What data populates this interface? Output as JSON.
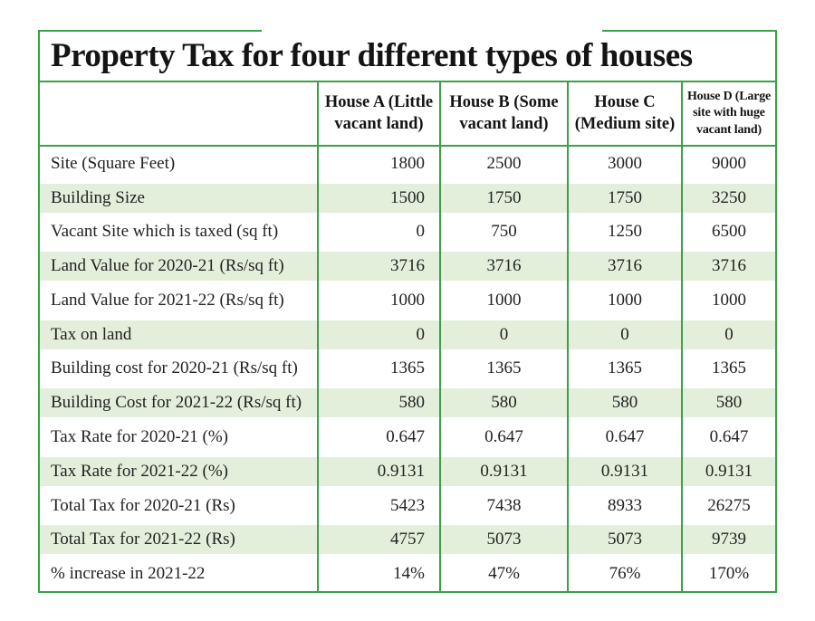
{
  "chart_data": {
    "type": "table",
    "title": "Property Tax for four different types of houses",
    "columns": [
      "House A (Little vacant land)",
      "House B (Some vacant land)",
      "House C (Medium site)",
      "House D (Large site with huge vacant land)"
    ],
    "rows": [
      {
        "label": "Site (Square Feet)",
        "values": [
          "1800",
          "2500",
          "3000",
          "9000"
        ]
      },
      {
        "label": "Building Size",
        "values": [
          "1500",
          "1750",
          "1750",
          "3250"
        ]
      },
      {
        "label": "Vacant Site which is taxed (sq ft)",
        "values": [
          "0",
          "750",
          "1250",
          "6500"
        ]
      },
      {
        "label": "Land Value for 2020-21 (Rs/sq ft)",
        "values": [
          "3716",
          "3716",
          "3716",
          "3716"
        ]
      },
      {
        "label": "Land Value for 2021-22 (Rs/sq ft)",
        "values": [
          "1000",
          "1000",
          "1000",
          "1000"
        ]
      },
      {
        "label": "Tax on land",
        "values": [
          "0",
          "0",
          "0",
          "0"
        ]
      },
      {
        "label": "Building cost for 2020-21 (Rs/sq ft)",
        "values": [
          "1365",
          "1365",
          "1365",
          "1365"
        ]
      },
      {
        "label": "Building Cost for 2021-22 (Rs/sq ft)",
        "values": [
          "580",
          "580",
          "580",
          "580"
        ]
      },
      {
        "label": "Tax Rate for 2020-21 (%)",
        "values": [
          "0.647",
          "0.647",
          "0.647",
          "0.647"
        ]
      },
      {
        "label": "Tax Rate for 2021-22 (%)",
        "values": [
          "0.9131",
          "0.9131",
          "0.9131",
          "0.9131"
        ]
      },
      {
        "label": "Total Tax for 2020-21 (Rs)",
        "values": [
          "5423",
          "7438",
          "8933",
          "26275"
        ]
      },
      {
        "label": "Total Tax for 2021-22 (Rs)",
        "values": [
          "4757",
          "5073",
          "5073",
          "9739"
        ]
      },
      {
        "label": "% increase in 2021-22",
        "values": [
          "14%",
          "47%",
          "76%",
          "170%"
        ]
      }
    ],
    "layout": {
      "stripe_pattern": "even rows (2nd, 4th, ...) pale green",
      "value_alignment": [
        "right",
        "center",
        "center",
        "center"
      ],
      "grid": "vertical green rules between columns, no horizontal rules between data rows"
    }
  },
  "colors": {
    "border_green": "#3aa04a",
    "row_stripe_green": "#e4efdb",
    "text": "#1f1f1f",
    "background": "#ffffff"
  }
}
